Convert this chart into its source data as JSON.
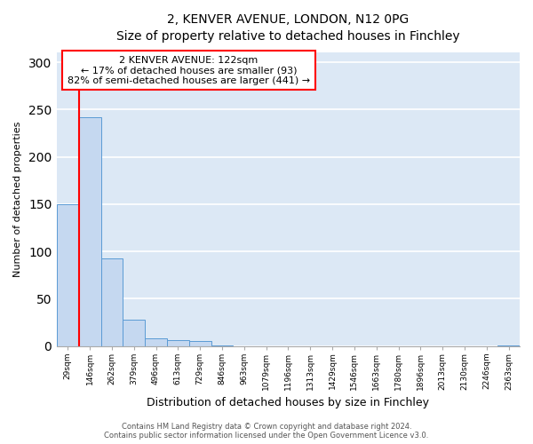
{
  "title_line1": "2, KENVER AVENUE, LONDON, N12 0PG",
  "title_line2": "Size of property relative to detached houses in Finchley",
  "xlabel": "Distribution of detached houses by size in Finchley",
  "ylabel": "Number of detached properties",
  "categories": [
    "29sqm",
    "146sqm",
    "262sqm",
    "379sqm",
    "496sqm",
    "613sqm",
    "729sqm",
    "846sqm",
    "963sqm",
    "1079sqm",
    "1196sqm",
    "1313sqm",
    "1429sqm",
    "1546sqm",
    "1663sqm",
    "1780sqm",
    "1896sqm",
    "2013sqm",
    "2130sqm",
    "2246sqm",
    "2363sqm"
  ],
  "values": [
    150,
    242,
    93,
    28,
    8,
    6,
    5,
    1,
    0,
    0,
    0,
    0,
    0,
    0,
    0,
    0,
    0,
    0,
    0,
    0,
    1
  ],
  "bar_color": "#c5d8f0",
  "bar_edge_color": "#5b9bd5",
  "annotation_line1": "2 KENVER AVENUE: 122sqm",
  "annotation_line2": "← 17% of detached houses are smaller (93)",
  "annotation_line3": "82% of semi-detached houses are larger (441) →",
  "annotation_box_color": "white",
  "annotation_box_edge_color": "red",
  "footer_line1": "Contains HM Land Registry data © Crown copyright and database right 2024.",
  "footer_line2": "Contains public sector information licensed under the Open Government Licence v3.0.",
  "ylim": [
    0,
    310
  ],
  "background_color": "#dce8f5",
  "grid_color": "white",
  "red_line_bin": 1
}
